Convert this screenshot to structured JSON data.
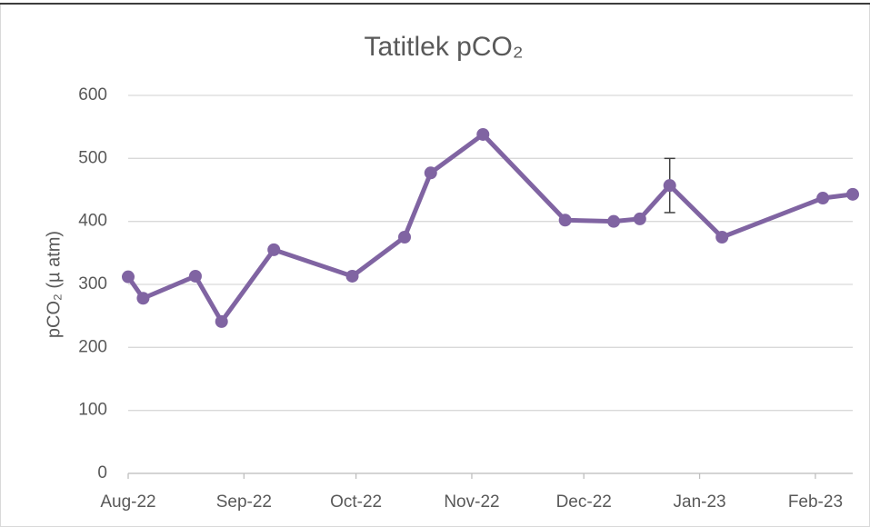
{
  "chart_data": {
    "type": "line",
    "title": "Tatitlek pCO₂",
    "y_label": "pCO₂ (µ atm)",
    "x": [
      0,
      4,
      18,
      25,
      39,
      60,
      74,
      81,
      95,
      117,
      130,
      137,
      145,
      159,
      186,
      194
    ],
    "values": [
      312,
      278,
      313,
      241,
      355,
      313,
      375,
      477,
      538,
      402,
      400,
      404,
      457,
      375,
      437,
      443
    ],
    "errors": [
      null,
      null,
      null,
      null,
      null,
      null,
      null,
      null,
      null,
      null,
      null,
      null,
      43,
      null,
      null,
      null
    ],
    "color": "#8064a2",
    "xlim": [
      0,
      194
    ],
    "xticks": [
      {
        "value": 0,
        "label": "Aug-22"
      },
      {
        "value": 31,
        "label": "Sep-22"
      },
      {
        "value": 61,
        "label": "Oct-22"
      },
      {
        "value": 92,
        "label": "Nov-22"
      },
      {
        "value": 122,
        "label": "Dec-22"
      },
      {
        "value": 153,
        "label": "Jan-23"
      },
      {
        "value": 184,
        "label": "Feb-23"
      }
    ],
    "ylim": [
      0,
      600
    ],
    "yticks": [
      0,
      100,
      200,
      300,
      400,
      500,
      600
    ],
    "grid": true
  }
}
